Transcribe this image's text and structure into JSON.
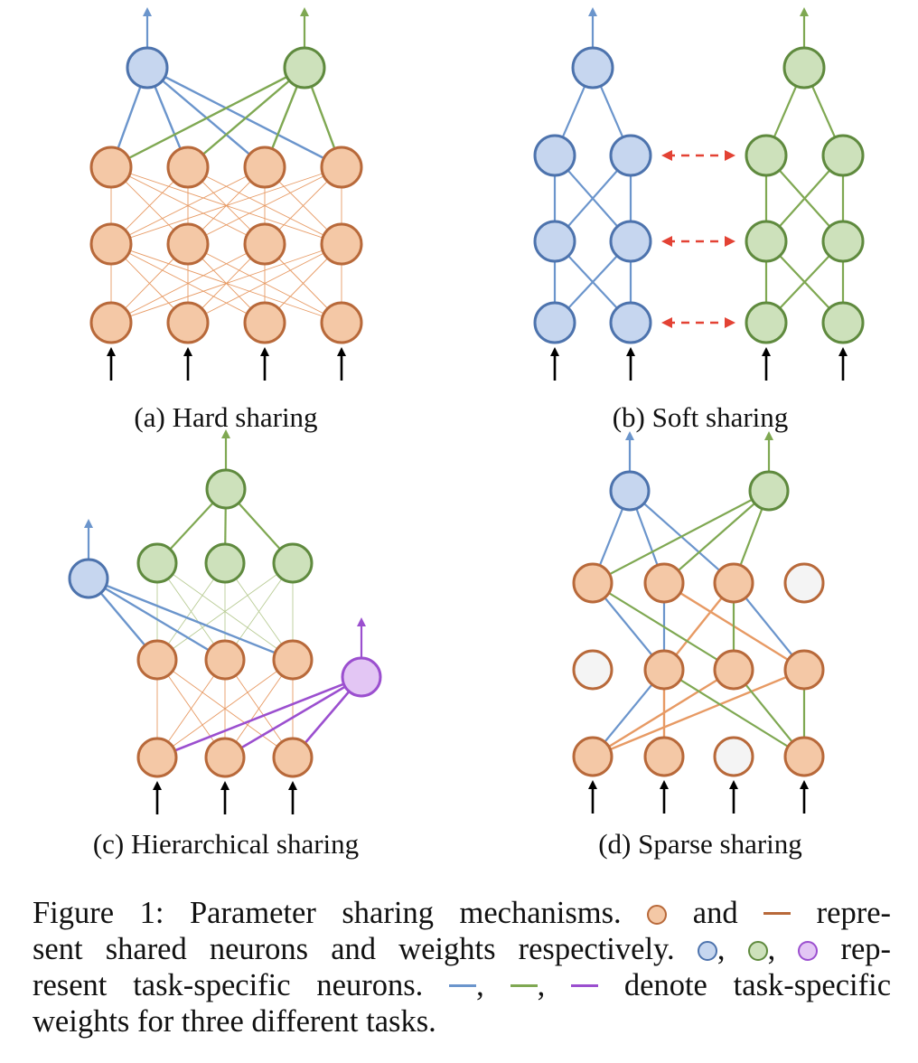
{
  "colors": {
    "shared_fill": "#f4c8a6",
    "shared_stroke": "#b8693a",
    "shared_weight": "#e79a64",
    "blue_fill": "#c6d6ef",
    "blue_stroke": "#4d73ad",
    "blue_weight": "#6b95cc",
    "green_fill": "#cde1bb",
    "green_stroke": "#5f8a3e",
    "green_weight": "#7fa852",
    "purple_fill": "#e3c6f4",
    "purple_stroke": "#9b4fcf",
    "purple_weight": "#9b4fcf",
    "inactive_fill": "#f4f4f4",
    "inactive_stroke": "#b8693a",
    "soft_link": "#e34234",
    "input_arrow": "#000000"
  },
  "subfigures": [
    {
      "id": "a",
      "caption": "(a) Hard sharing"
    },
    {
      "id": "b",
      "caption": "(b) Soft sharing"
    },
    {
      "id": "c",
      "caption": "(c) Hierarchical sharing"
    },
    {
      "id": "d",
      "caption": "(d) Sparse sharing"
    }
  ],
  "caption": {
    "label": "Figure 1:",
    "part1": "Parameter sharing mechanisms.",
    "and": "and",
    "repre": "repre-",
    "line2a": "sent shared neurons and weights respectively.",
    "rep": "rep-",
    "line3a": "resent task-specific neurons.",
    "line3b": "denote task-specific",
    "line4": "weights for three different tasks.",
    "comma": ","
  }
}
